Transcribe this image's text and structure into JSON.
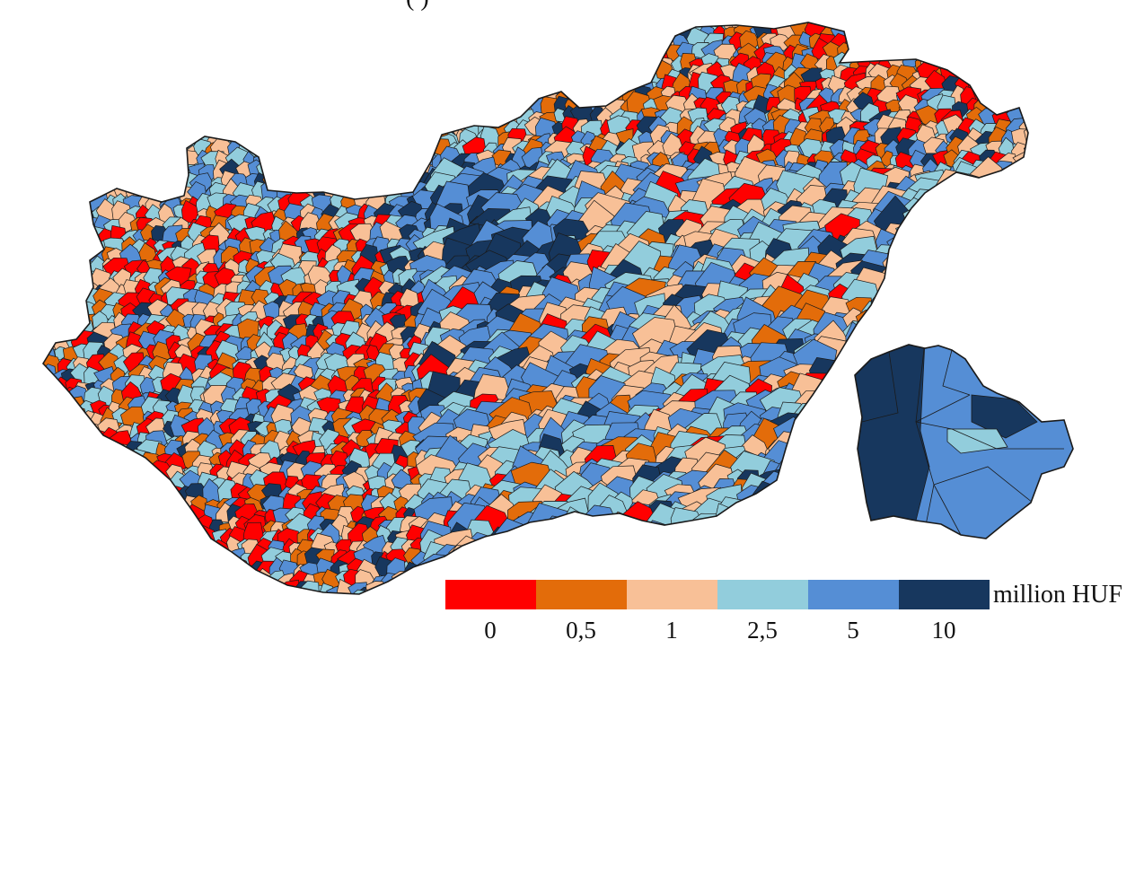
{
  "figure": {
    "top_fragment_text": "(                   )"
  },
  "legend": {
    "unit": "million HUF",
    "classes": [
      {
        "label": "0",
        "color": "#ff0000"
      },
      {
        "label": "0,5",
        "color": "#e36c0a"
      },
      {
        "label": "1",
        "color": "#f8c097"
      },
      {
        "label": "2,5",
        "color": "#92cddc"
      },
      {
        "label": "5",
        "color": "#558ed5"
      },
      {
        "label": "10",
        "color": "#17375e"
      }
    ]
  },
  "map": {
    "main_region": "Hungary municipalities",
    "inset_region": "Budapest districts",
    "outline_color": "#1a1a1a"
  }
}
